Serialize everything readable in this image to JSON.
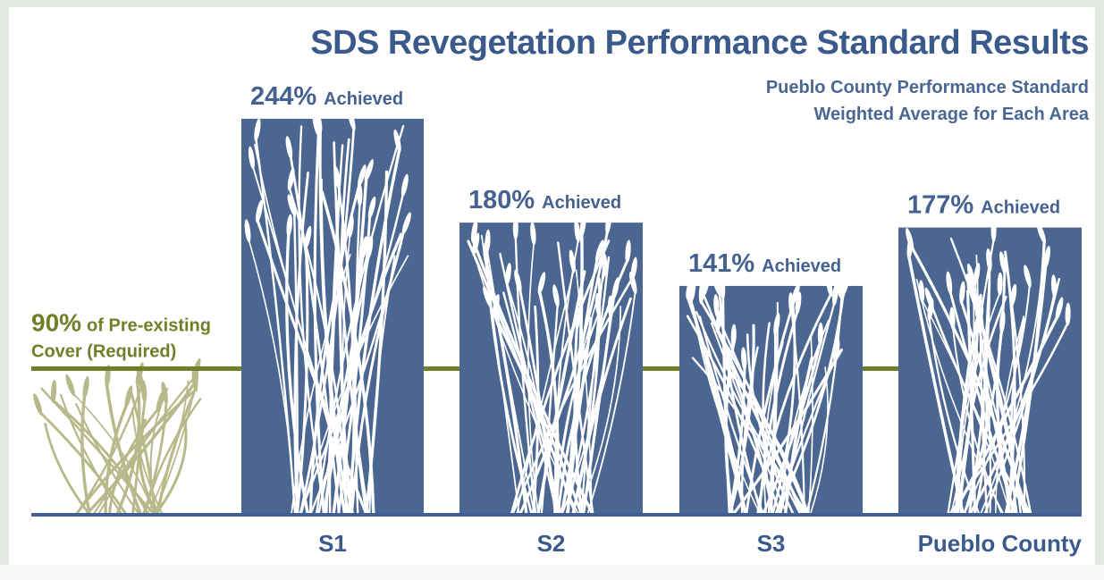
{
  "chart_data": {
    "type": "bar",
    "title": "SDS Revegetation Performance Standard Results",
    "subtitle": [
      "Pueblo County Performance Standard",
      "Weighted Average for Each Area"
    ],
    "categories": [
      "S1",
      "S2",
      "S3",
      "Pueblo County"
    ],
    "values": [
      244,
      180,
      141,
      177
    ],
    "value_labels": [
      "244%",
      "180%",
      "141%",
      "177%"
    ],
    "value_label_note": "Achieved",
    "color": "#4b6791",
    "ylim": [
      0,
      250
    ],
    "reference_line": {
      "value": 90,
      "value_label": "90%",
      "label_lines": [
        "of Pre-existing",
        "Cover (Required)"
      ],
      "color": "#6e8028"
    }
  }
}
